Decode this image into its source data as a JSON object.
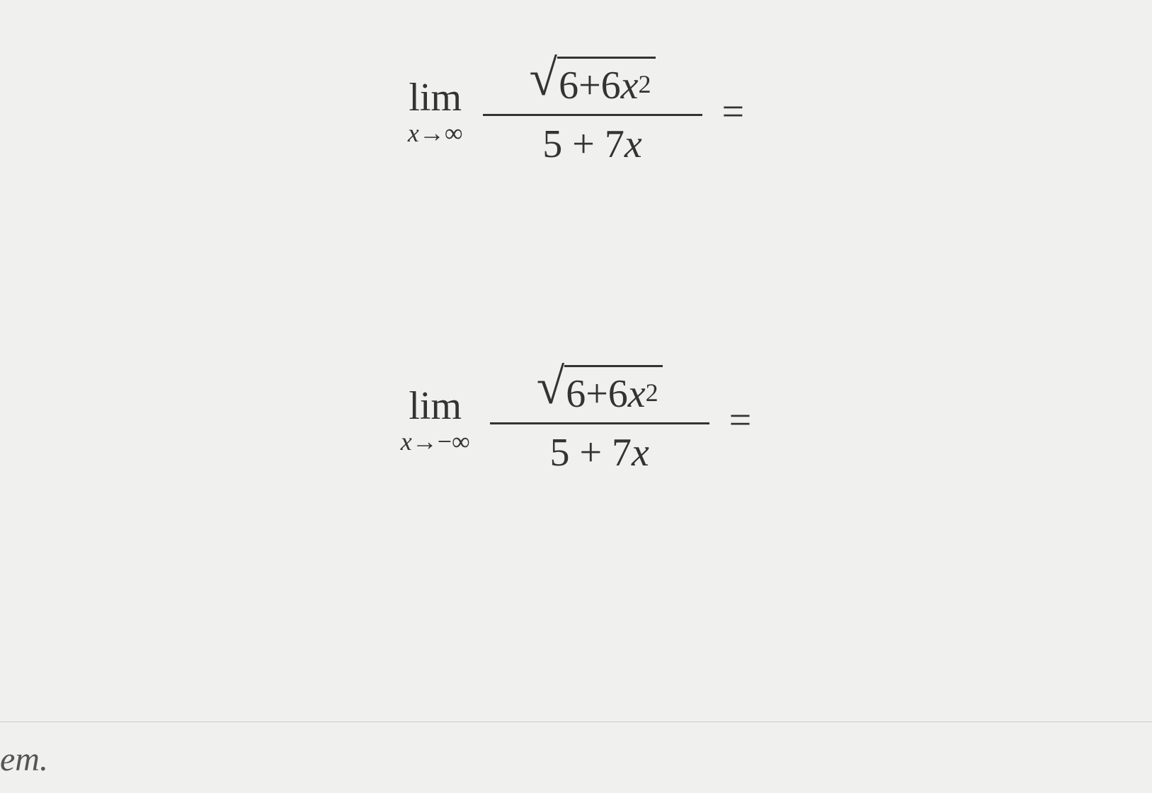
{
  "equations": [
    {
      "lim_label": "lim",
      "lim_subscript_var": "x",
      "lim_subscript_arrow": "→",
      "lim_subscript_target": "∞",
      "sqrt_inner_a": "6",
      "sqrt_inner_plus": " + ",
      "sqrt_inner_b": "6",
      "sqrt_inner_var": "x",
      "sqrt_inner_exp": "2",
      "denom_a": "5",
      "denom_plus": " + ",
      "denom_b": "7",
      "denom_var": "x",
      "equals": "="
    },
    {
      "lim_label": "lim",
      "lim_subscript_var": "x",
      "lim_subscript_arrow": "→",
      "lim_subscript_target": "−∞",
      "sqrt_inner_a": "6",
      "sqrt_inner_plus": " + ",
      "sqrt_inner_b": "6",
      "sqrt_inner_var": "x",
      "sqrt_inner_exp": "2",
      "denom_a": "5",
      "denom_plus": " + ",
      "denom_b": "7",
      "denom_var": "x",
      "equals": "="
    }
  ],
  "footer": {
    "text": "em."
  },
  "colors": {
    "background": "#f0f0ee",
    "text": "#333333",
    "divider": "#cccccc"
  },
  "fonts": {
    "family": "Times New Roman, serif",
    "main_size_pt": 42,
    "sub_size_pt": 27,
    "sup_size_pt": 27
  }
}
